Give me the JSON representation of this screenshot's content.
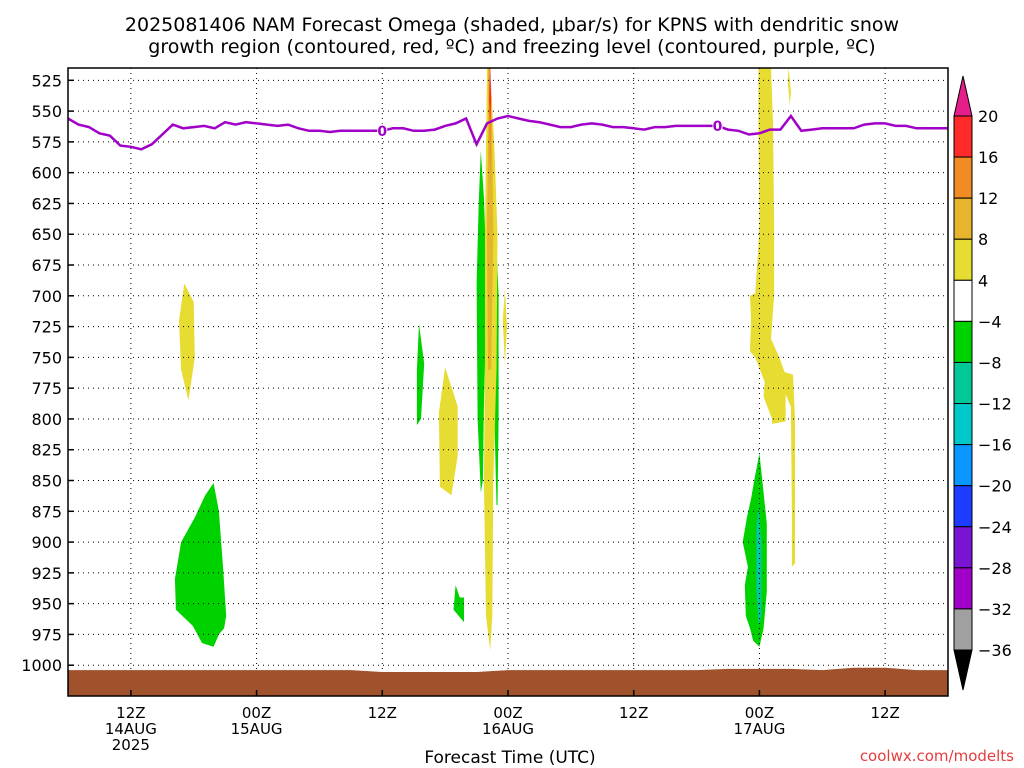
{
  "chart_data": {
    "type": "heatmap",
    "title_lines": [
      "2025081406 NAM Forecast Omega (shaded, μbar/s) for KPNS with dendritic snow",
      "growth region (contoured, red, ºC) and freezing level (contoured, purple, ºC)"
    ],
    "xlabel": "Forecast Time (UTC)",
    "ylabel": "",
    "credit": "coolwx.com/modelts",
    "x_unit": "forecast hours from 2025-08-14 06Z",
    "xlim": [
      0,
      84
    ],
    "x_ticks": [
      {
        "hour": 6,
        "lines": [
          "12Z",
          "14AUG",
          "2025"
        ]
      },
      {
        "hour": 18,
        "lines": [
          "00Z",
          "15AUG"
        ]
      },
      {
        "hour": 30,
        "lines": [
          "12Z"
        ]
      },
      {
        "hour": 42,
        "lines": [
          "00Z",
          "16AUG"
        ]
      },
      {
        "hour": 54,
        "lines": [
          "12Z"
        ]
      },
      {
        "hour": 66,
        "lines": [
          "00Z",
          "17AUG"
        ]
      },
      {
        "hour": 78,
        "lines": [
          "12Z"
        ]
      }
    ],
    "y_unit": "pressure (mb)",
    "ylim": [
      1025,
      515
    ],
    "y_ticks": [
      525,
      550,
      575,
      600,
      625,
      650,
      675,
      700,
      725,
      750,
      775,
      800,
      825,
      850,
      875,
      900,
      925,
      950,
      975,
      1000
    ],
    "grid": true,
    "colorbar": {
      "labels": [
        "20",
        "16",
        "12",
        "8",
        "4",
        "−4",
        "−8",
        "−12",
        "−16",
        "−20",
        "−24",
        "−28",
        "−32",
        "−36"
      ],
      "bins": [
        {
          "range": [
            16,
            20
          ],
          "color": "#ff2a2a"
        },
        {
          "range": [
            12,
            16
          ],
          "color": "#f08c23"
        },
        {
          "range": [
            8,
            12
          ],
          "color": "#e6b42d"
        },
        {
          "range": [
            4,
            8
          ],
          "color": "#e6dc32"
        },
        {
          "range": [
            -4,
            4
          ],
          "color": "#ffffff"
        },
        {
          "range": [
            -8,
            -4
          ],
          "color": "#00d200"
        },
        {
          "range": [
            -12,
            -8
          ],
          "color": "#00c896"
        },
        {
          "range": [
            -16,
            -12
          ],
          "color": "#00c8c8"
        },
        {
          "range": [
            -20,
            -16
          ],
          "color": "#0a96ff"
        },
        {
          "range": [
            -24,
            -20
          ],
          "color": "#1e3cff"
        },
        {
          "range": [
            -28,
            -24
          ],
          "color": "#7814d2"
        },
        {
          "range": [
            -32,
            -28
          ],
          "color": "#a000c8"
        },
        {
          "range": [
            -36,
            -32
          ],
          "color": "#a0a0a0"
        }
      ],
      "top_arrow_color": "#e61e8c",
      "bottom_arrow_color": "#000000"
    },
    "freezing_level": {
      "label": "0",
      "color": "#a000c8",
      "hours": [
        0,
        1,
        2,
        3,
        4,
        5,
        6,
        7,
        8,
        9,
        10,
        11,
        12,
        13,
        14,
        15,
        16,
        17,
        18,
        19,
        20,
        21,
        22,
        23,
        24,
        25,
        26,
        27,
        28,
        29,
        30,
        31,
        32,
        33,
        34,
        35,
        36,
        37,
        38,
        39,
        40,
        41,
        42,
        43,
        44,
        45,
        46,
        47,
        48,
        49,
        50,
        51,
        52,
        53,
        54,
        55,
        56,
        57,
        58,
        59,
        60,
        61,
        62,
        63,
        64,
        65,
        66,
        67,
        68,
        69,
        70,
        71,
        72,
        73,
        74,
        75,
        76,
        77,
        78,
        79,
        80,
        81,
        82,
        83,
        84
      ],
      "pressure": [
        556,
        561,
        563,
        568,
        570,
        578,
        579,
        581,
        577,
        569,
        561,
        564,
        563,
        562,
        564,
        559,
        561,
        559,
        560,
        561,
        562,
        561,
        564,
        566,
        566,
        567,
        566,
        566,
        566,
        566,
        566,
        564,
        564,
        566,
        566,
        565,
        562,
        560,
        556,
        577,
        560,
        556,
        554,
        556,
        558,
        559,
        561,
        563,
        563,
        561,
        560,
        561,
        563,
        563,
        564,
        565,
        563,
        563,
        562,
        562,
        562,
        562,
        562,
        565,
        566,
        569,
        568,
        565,
        565,
        554,
        566,
        565,
        564,
        564,
        564,
        564,
        561,
        560,
        560,
        562,
        562,
        564,
        564,
        564,
        564
      ]
    },
    "ground_color": "#a0522d",
    "regions": [
      {
        "omega": 6,
        "color": "#e6dc32",
        "pts": [
          [
            11.1,
            690
          ],
          [
            12,
            705
          ],
          [
            12.1,
            750
          ],
          [
            11.5,
            785
          ],
          [
            10.8,
            760
          ],
          [
            10.6,
            720
          ]
        ]
      },
      {
        "omega": -6,
        "color": "#00d200",
        "pts": [
          [
            13.9,
            852
          ],
          [
            14.4,
            875
          ],
          [
            14.8,
            920
          ],
          [
            15.1,
            960
          ],
          [
            14.9,
            970
          ],
          [
            14.4,
            975
          ],
          [
            13.9,
            985
          ],
          [
            12.8,
            982
          ],
          [
            11.9,
            968
          ],
          [
            10.3,
            955
          ],
          [
            10.2,
            930
          ],
          [
            10.8,
            900
          ],
          [
            12.1,
            880
          ],
          [
            13.1,
            862
          ]
        ]
      },
      {
        "omega": -6,
        "color": "#00d200",
        "pts": [
          [
            33.5,
            723
          ],
          [
            34,
            755
          ],
          [
            33.7,
            800
          ],
          [
            33.3,
            805
          ],
          [
            33.3,
            760
          ]
        ]
      },
      {
        "omega": 6,
        "color": "#e6dc32",
        "pts": [
          [
            36,
            758
          ],
          [
            37.2,
            790
          ],
          [
            37.2,
            830
          ],
          [
            36.6,
            862
          ],
          [
            35.5,
            855
          ],
          [
            35.4,
            795
          ]
        ]
      },
      {
        "omega": -6,
        "color": "#00d200",
        "pts": [
          [
            37.4,
            945
          ],
          [
            37.8,
            945
          ],
          [
            37.8,
            965
          ],
          [
            37.3,
            960
          ],
          [
            36.8,
            955
          ],
          [
            37,
            935
          ]
        ]
      },
      {
        "omega": -6,
        "color": "#00d200",
        "pts": [
          [
            39.4,
            582
          ],
          [
            39.7,
            620
          ],
          [
            40,
            690
          ],
          [
            39.7,
            790
          ],
          [
            39.6,
            850
          ],
          [
            39.4,
            860
          ],
          [
            39.1,
            800
          ],
          [
            39,
            690
          ],
          [
            39.2,
            625
          ]
        ]
      },
      {
        "omega": -6,
        "color": "#00d200",
        "pts": [
          [
            40.8,
            640
          ],
          [
            41.1,
            700
          ],
          [
            41.1,
            800
          ],
          [
            41,
            870
          ],
          [
            40.9,
            870
          ],
          [
            40.7,
            800
          ],
          [
            40.6,
            700
          ]
        ]
      },
      {
        "omega": 6,
        "color": "#e6dc32",
        "pts": [
          [
            40.3,
            515
          ],
          [
            40.7,
            580
          ],
          [
            41,
            650
          ],
          [
            40.9,
            760
          ],
          [
            40.6,
            850
          ],
          [
            40.5,
            960
          ],
          [
            40.3,
            988
          ],
          [
            39.9,
            960
          ],
          [
            39.7,
            850
          ],
          [
            39.8,
            760
          ],
          [
            39.8,
            650
          ],
          [
            39.9,
            580
          ],
          [
            40,
            515
          ]
        ]
      },
      {
        "omega": 10,
        "color": "#e6b42d",
        "pts": [
          [
            40.3,
            515
          ],
          [
            40.5,
            570
          ],
          [
            40.6,
            650
          ],
          [
            40.4,
            760
          ],
          [
            40.1,
            760
          ],
          [
            40,
            650
          ],
          [
            40.1,
            570
          ],
          [
            40.1,
            515
          ]
        ]
      },
      {
        "omega": 14,
        "color": "#f08c23",
        "pts": [
          [
            40.3,
            515
          ],
          [
            40.4,
            560
          ],
          [
            40.3,
            610
          ],
          [
            40.2,
            560
          ],
          [
            40.2,
            515
          ]
        ]
      },
      {
        "omega": 18,
        "color": "#ff2a2a",
        "pts": [
          [
            40.3,
            515
          ],
          [
            40.4,
            540
          ],
          [
            40.3,
            560
          ],
          [
            40.2,
            540
          ]
        ]
      },
      {
        "omega": 22,
        "color": "#e61e8c",
        "pts": [
          [
            40.3,
            515
          ],
          [
            40.34,
            528
          ],
          [
            40.3,
            540
          ],
          [
            40.26,
            528
          ]
        ]
      },
      {
        "omega": 6,
        "color": "#e6dc32",
        "pts": [
          [
            41.7,
            695
          ],
          [
            41.9,
            725
          ],
          [
            41.7,
            755
          ],
          [
            41.5,
            720
          ]
        ]
      },
      {
        "omega": 6,
        "color": "#e6dc32",
        "pts": [
          [
            65.9,
            515
          ],
          [
            67.1,
            515
          ],
          [
            67.3,
            560
          ],
          [
            67.4,
            640
          ],
          [
            67.4,
            700
          ],
          [
            67.1,
            735
          ],
          [
            67.9,
            750
          ],
          [
            68.4,
            762
          ],
          [
            69.2,
            764
          ],
          [
            69.4,
            800
          ],
          [
            69.4,
            870
          ],
          [
            69.4,
            917
          ],
          [
            69.1,
            920
          ],
          [
            69.1,
            878
          ],
          [
            69,
            790
          ],
          [
            68.5,
            780
          ],
          [
            68.5,
            802
          ],
          [
            67.2,
            804
          ],
          [
            67.2,
            800
          ],
          [
            66.4,
            782
          ],
          [
            66.5,
            770
          ],
          [
            65.6,
            750
          ],
          [
            65.1,
            745
          ],
          [
            65.2,
            720
          ],
          [
            65.1,
            700
          ],
          [
            65.6,
            698
          ],
          [
            65.9,
            660
          ],
          [
            66,
            640
          ],
          [
            65.9,
            560
          ]
        ]
      },
      {
        "omega": 6,
        "color": "#e6dc32",
        "pts": [
          [
            68.8,
            515
          ],
          [
            69,
            535
          ],
          [
            68.9,
            545
          ],
          [
            68.7,
            525
          ]
        ]
      },
      {
        "omega": -6,
        "color": "#00d200",
        "pts": [
          [
            66,
            828
          ],
          [
            66.4,
            860
          ],
          [
            66.7,
            885
          ],
          [
            66.7,
            940
          ],
          [
            66.4,
            970
          ],
          [
            66,
            985
          ],
          [
            65.4,
            980
          ],
          [
            65.1,
            970
          ],
          [
            64.7,
            960
          ],
          [
            64.6,
            935
          ],
          [
            64.9,
            920
          ],
          [
            64.4,
            900
          ],
          [
            64.8,
            880
          ],
          [
            65.2,
            865
          ],
          [
            65.5,
            850
          ]
        ]
      },
      {
        "omega": -10,
        "color": "#00c896",
        "pts": [
          [
            65.9,
            868
          ],
          [
            66.2,
            900
          ],
          [
            66.2,
            960
          ],
          [
            65.9,
            968
          ],
          [
            65.7,
            940
          ],
          [
            65.7,
            890
          ]
        ]
      },
      {
        "omega": -14,
        "color": "#00c8c8",
        "pts": [
          [
            65.9,
            885
          ],
          [
            66,
            915
          ],
          [
            65.9,
            940
          ],
          [
            65.8,
            912
          ]
        ]
      }
    ]
  }
}
